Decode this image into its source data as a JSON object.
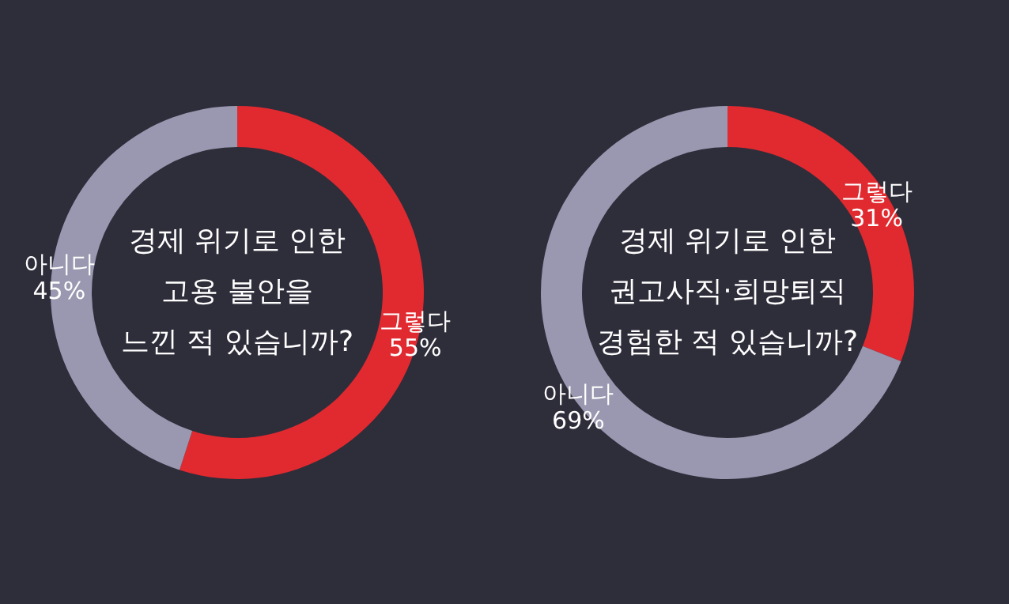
{
  "chart_data": [
    {
      "type": "donut",
      "title": "경제 위기로 인한\n고용 불안을\n느낀 적 있습니까?",
      "categories": [
        "그렇다",
        "아니다"
      ],
      "values": [
        55,
        45
      ],
      "colors": [
        "#e02a30",
        "#9a98b0"
      ],
      "value_labels": [
        "55%",
        "45%"
      ],
      "legend": false
    },
    {
      "type": "donut",
      "title": "경제 위기로 인한\n권고사직·희망퇴직\n경험한 적 있습니까?",
      "categories": [
        "그렇다",
        "아니다"
      ],
      "values": [
        31,
        69
      ],
      "colors": [
        "#e02a30",
        "#9a98b0"
      ],
      "value_labels": [
        "31%",
        "69%"
      ],
      "legend": false
    }
  ]
}
